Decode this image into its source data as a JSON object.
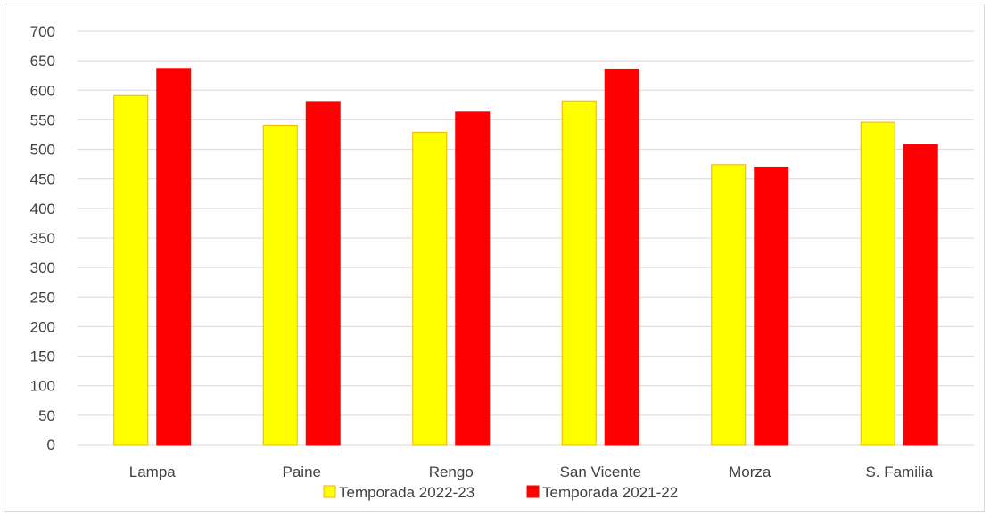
{
  "chart_data": {
    "type": "bar",
    "categories": [
      "Lampa",
      "Paine",
      "Rengo",
      "San Vicente",
      "Morza",
      "S. Familia"
    ],
    "series": [
      {
        "name": "Temporada 2022-23",
        "values": [
          591,
          541,
          529,
          582,
          474,
          546
        ],
        "color": "#ffff00",
        "border": "#f0b400"
      },
      {
        "name": "Temporada 2021-22",
        "values": [
          637,
          581,
          563,
          636,
          470,
          508
        ],
        "color": "#ff0000",
        "border": "#ff0000"
      }
    ],
    "title": "",
    "xlabel": "",
    "ylabel": "",
    "ylim": [
      0,
      700
    ],
    "ytick_step": 50,
    "grid": true,
    "legend_position": "bottom"
  }
}
